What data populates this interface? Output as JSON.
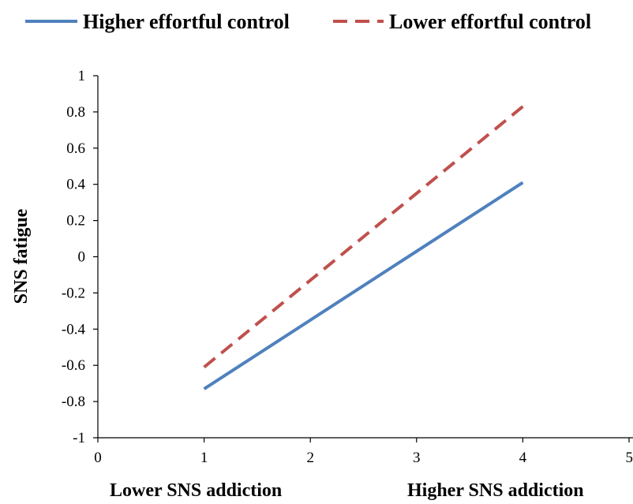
{
  "chart_data": {
    "type": "line",
    "title": "",
    "xlabel_left": "Lower SNS addiction",
    "xlabel_right": "Higher SNS addiction",
    "ylabel": "SNS fatigue",
    "xlim": [
      0,
      5
    ],
    "ylim": [
      -1,
      1
    ],
    "xticks": [
      "0",
      "1",
      "2",
      "3",
      "4",
      "5"
    ],
    "yticks": [
      "1",
      "0.8",
      "0.6",
      "0.4",
      "0.2",
      "0",
      "-0.2",
      "-0.4",
      "-0.6",
      "-0.8",
      "-1"
    ],
    "legend_position": "top",
    "grid": false,
    "series": [
      {
        "name": "Higher effortful control",
        "x": [
          1,
          4
        ],
        "y": [
          -0.73,
          0.41
        ],
        "color": "#4f81bd",
        "style": "solid"
      },
      {
        "name": "Lower effortful control",
        "x": [
          1,
          4
        ],
        "y": [
          -0.61,
          0.83
        ],
        "color": "#c0504d",
        "style": "dashed"
      }
    ]
  }
}
